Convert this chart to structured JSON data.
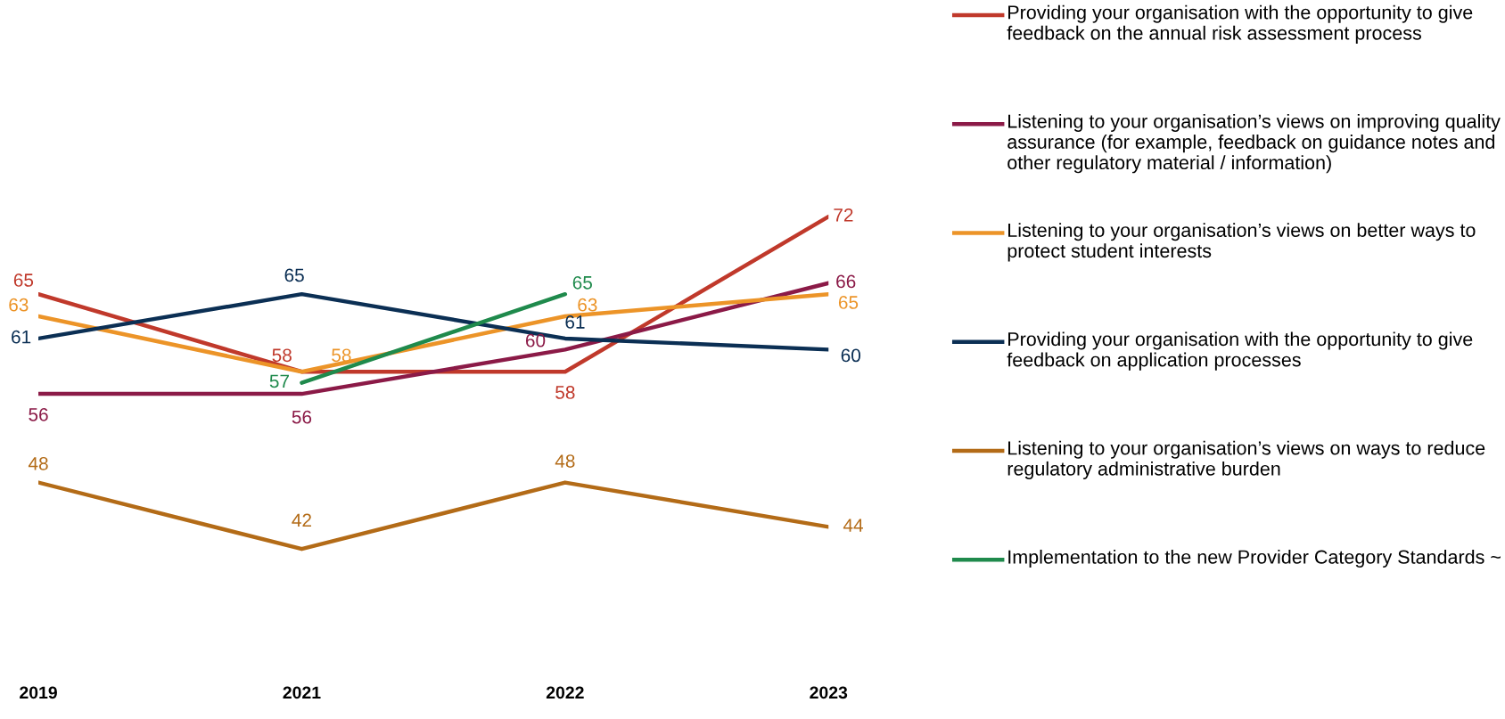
{
  "chart_data": {
    "type": "line",
    "categories": [
      "2019",
      "2021",
      "2022",
      "2023"
    ],
    "relative": false,
    "tick_labels": "x",
    "grid": false,
    "legend": "right",
    "marker": "none",
    "line_style": "solid",
    "data_labels": true,
    "series": [
      {
        "name": "Providing your organisation with the opportunity to give feedback on the annual risk assessment process",
        "color": "#c0392b",
        "values": [
          65,
          58,
          58,
          72
        ]
      },
      {
        "name": "Listening to your organisation’s views on improving quality assurance (for example, feedback on guidance notes and other regulatory material / information)",
        "color": "#8b1a47",
        "values": [
          56,
          56,
          60,
          66
        ]
      },
      {
        "name": "Listening to your organisation’s views on better ways to protect student interests",
        "color": "#ec9428",
        "values": [
          63,
          58,
          63,
          65
        ]
      },
      {
        "name": "Providing your organisation with the opportunity to give feedback on application processes",
        "color": "#0b2f54",
        "values": [
          61,
          65,
          61,
          60
        ]
      },
      {
        "name": "Listening to your organisation’s views on ways to reduce regulatory administrative burden",
        "color": "#b36b17",
        "values": [
          48,
          42,
          48,
          44
        ]
      },
      {
        "name": "Implementation to the new Provider Category Standards ~",
        "color": "#1f8a4c",
        "values": [
          null,
          57,
          65,
          null
        ]
      }
    ]
  }
}
